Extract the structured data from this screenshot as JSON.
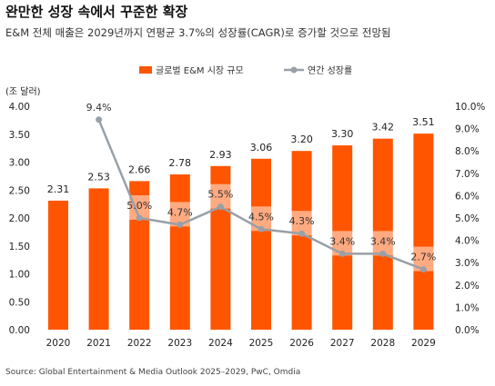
{
  "header": {
    "title": "완만한 성장 속에서 꾸준한 확장",
    "subtitle": "E&M 전체 매출은 2029년까지 연평균 3.7%의 성장률(CAGR)로 증가할 것으로 전망됨"
  },
  "footer": {
    "source": "Source: Global Entertainment & Media Outlook 2025–2029, PwC, Omdia"
  },
  "chart_data": {
    "type": "bar",
    "categories": [
      "2020",
      "2021",
      "2022",
      "2023",
      "2024",
      "2025",
      "2026",
      "2027",
      "2028",
      "2029"
    ],
    "series": [
      {
        "name": "글로벌 E&M 시장 규모",
        "type": "bar",
        "axis": "left",
        "color": "#FF5500",
        "values": [
          2.31,
          2.53,
          2.66,
          2.78,
          2.93,
          3.06,
          3.2,
          3.3,
          3.42,
          3.51
        ],
        "labels": [
          "2.31",
          "2.53",
          "2.66",
          "2.78",
          "2.93",
          "3.06",
          "3.20",
          "3.30",
          "3.42",
          "3.51"
        ]
      },
      {
        "name": "연간 성장률",
        "type": "line",
        "axis": "right",
        "color": "#9AA0A8",
        "values": [
          null,
          9.4,
          5.0,
          4.7,
          5.5,
          4.5,
          4.3,
          3.4,
          3.4,
          2.7
        ],
        "labels": [
          "",
          "9.4%",
          "5.0%",
          "4.7%",
          "5.5%",
          "4.5%",
          "4.3%",
          "3.4%",
          "3.4%",
          "2.7%"
        ]
      }
    ],
    "y_left": {
      "unit_label": "(조 달러)",
      "range": [
        0,
        4.0
      ],
      "ticks": [
        "0.00",
        "0.50",
        "1.00",
        "1.50",
        "2.00",
        "2.50",
        "3.00",
        "3.50",
        "4.00"
      ]
    },
    "y_right": {
      "range": [
        0,
        10
      ],
      "ticks": [
        "0.0%",
        "1.0%",
        "2.0%",
        "3.0%",
        "4.0%",
        "5.0%",
        "6.0%",
        "7.0%",
        "8.0%",
        "9.0%",
        "10.0%"
      ]
    },
    "legend": {
      "placement": "top-center"
    },
    "grid": false
  }
}
